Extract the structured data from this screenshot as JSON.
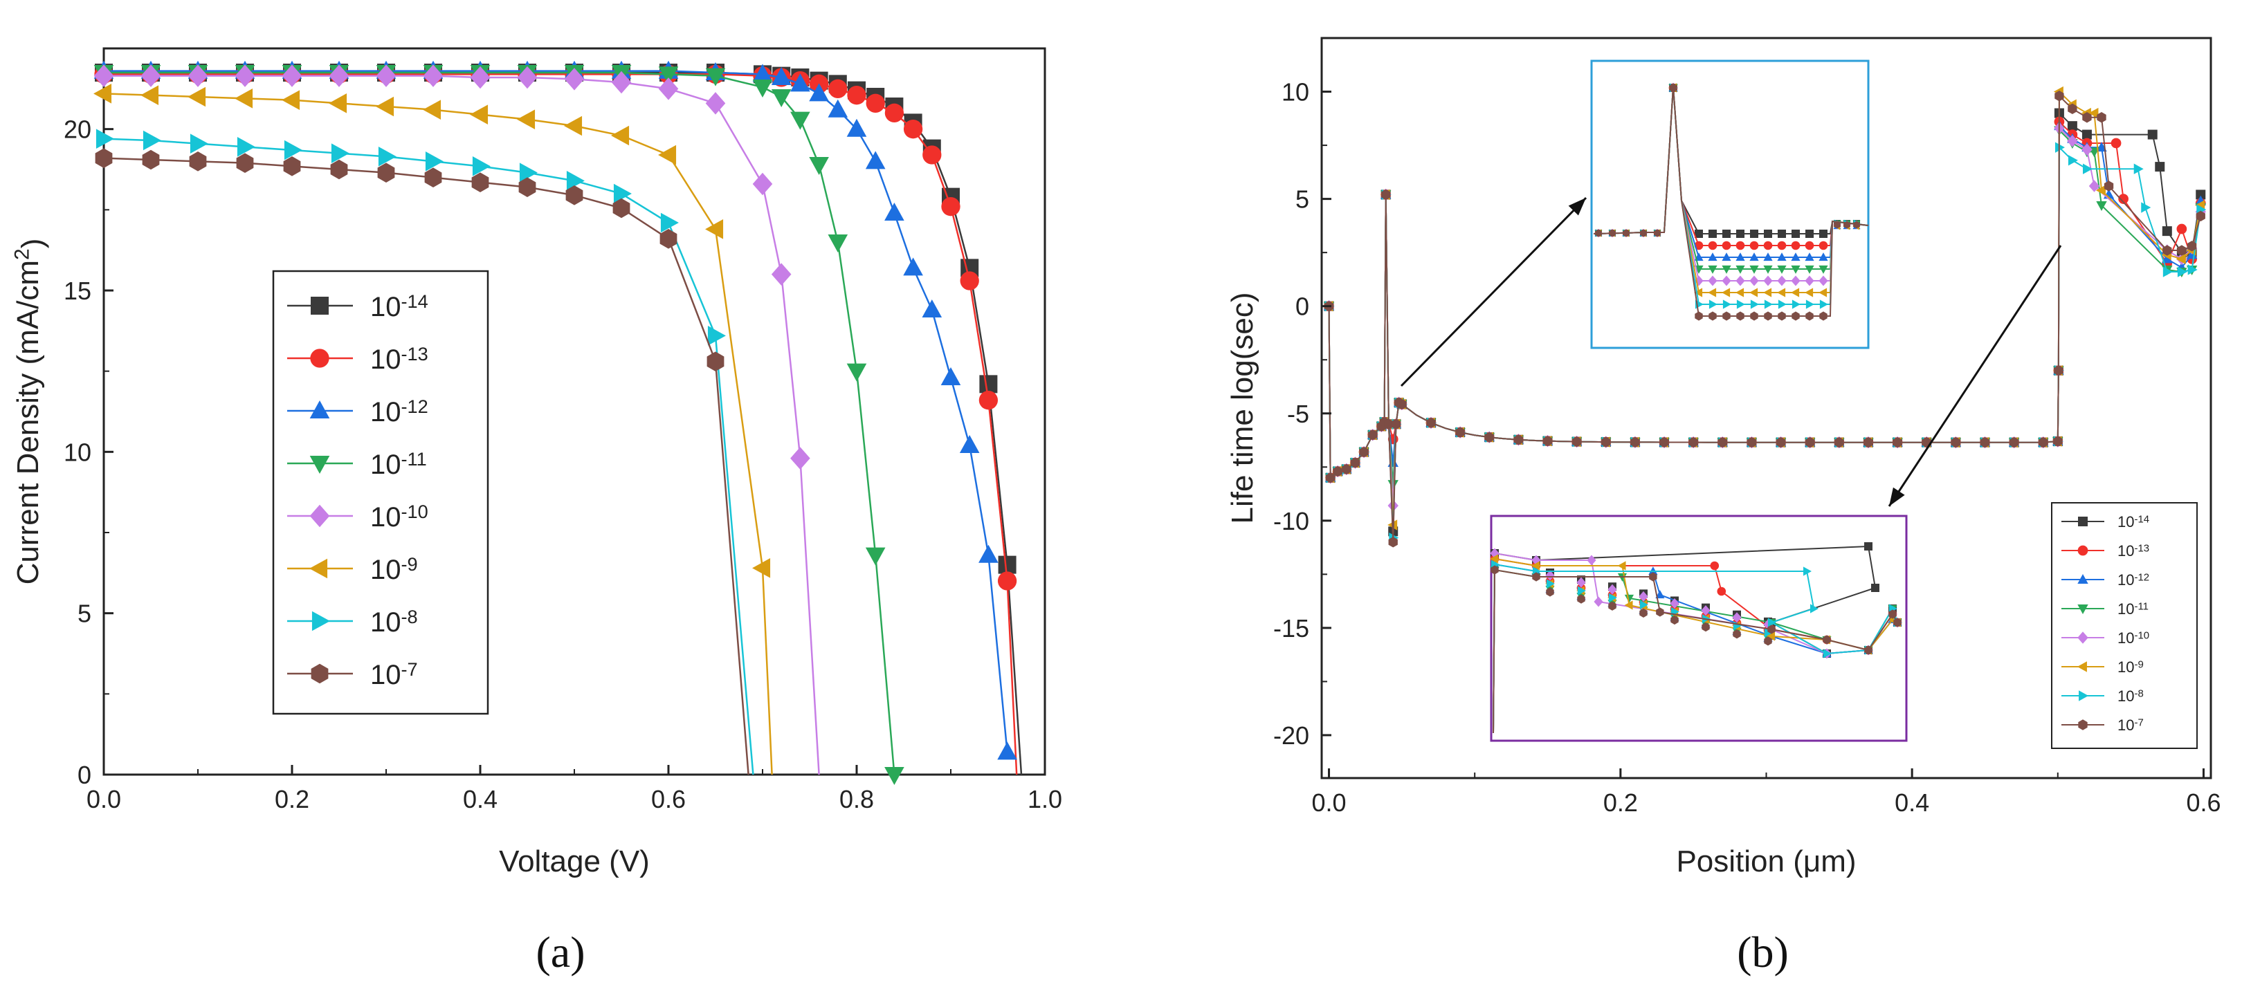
{
  "chart_data": [
    {
      "type": "line",
      "panel_label": "(a)",
      "xlabel": "Voltage (V)",
      "ylabel": "Current Density (mA/cm2)",
      "ylabel_unit_exponent": "2",
      "xlim": [
        0,
        1.0
      ],
      "ylim": [
        0,
        22.5
      ],
      "xticks": [
        "0.0",
        "0.2",
        "0.4",
        "0.6",
        "0.8",
        "1.0"
      ],
      "yticks": [
        "0",
        "5",
        "10",
        "15",
        "20"
      ],
      "xtick_values": [
        0,
        0.2,
        0.4,
        0.6,
        0.8,
        1.0
      ],
      "ytick_values": [
        0,
        5,
        10,
        15,
        20
      ],
      "legend_position": "center-left",
      "series": [
        {
          "name": "10-14",
          "base": "10",
          "exp": "-14",
          "color": "#3a3a3a",
          "marker": "square",
          "x": [
            0,
            0.05,
            0.1,
            0.15,
            0.2,
            0.25,
            0.3,
            0.35,
            0.4,
            0.45,
            0.5,
            0.55,
            0.6,
            0.65,
            0.7,
            0.72,
            0.74,
            0.76,
            0.78,
            0.8,
            0.82,
            0.84,
            0.86,
            0.88,
            0.9,
            0.92,
            0.94,
            0.96,
            0.975
          ],
          "y": [
            21.75,
            21.75,
            21.75,
            21.75,
            21.75,
            21.75,
            21.75,
            21.75,
            21.75,
            21.75,
            21.75,
            21.75,
            21.75,
            21.75,
            21.7,
            21.65,
            21.6,
            21.5,
            21.4,
            21.2,
            21.0,
            20.7,
            20.2,
            19.4,
            17.9,
            15.7,
            12.1,
            6.5,
            0
          ]
        },
        {
          "name": "10-13",
          "base": "10",
          "exp": "-13",
          "color": "#f0302a",
          "marker": "circle",
          "x": [
            0,
            0.05,
            0.1,
            0.15,
            0.2,
            0.25,
            0.3,
            0.35,
            0.4,
            0.45,
            0.5,
            0.55,
            0.6,
            0.65,
            0.7,
            0.72,
            0.74,
            0.76,
            0.78,
            0.8,
            0.82,
            0.84,
            0.86,
            0.88,
            0.9,
            0.92,
            0.94,
            0.96,
            0.97
          ],
          "y": [
            21.7,
            21.7,
            21.7,
            21.7,
            21.7,
            21.7,
            21.7,
            21.7,
            21.7,
            21.7,
            21.7,
            21.7,
            21.7,
            21.7,
            21.65,
            21.6,
            21.5,
            21.4,
            21.25,
            21.05,
            20.8,
            20.5,
            20.0,
            19.2,
            17.6,
            15.3,
            11.6,
            6.0,
            0
          ]
        },
        {
          "name": "10-12",
          "base": "10",
          "exp": "-12",
          "color": "#1d6fe0",
          "marker": "triangle-up",
          "x": [
            0,
            0.05,
            0.1,
            0.15,
            0.2,
            0.25,
            0.3,
            0.35,
            0.4,
            0.45,
            0.5,
            0.55,
            0.6,
            0.65,
            0.7,
            0.72,
            0.74,
            0.76,
            0.78,
            0.8,
            0.82,
            0.84,
            0.86,
            0.88,
            0.9,
            0.92,
            0.94,
            0.96
          ],
          "y": [
            21.8,
            21.8,
            21.8,
            21.8,
            21.8,
            21.8,
            21.8,
            21.8,
            21.8,
            21.8,
            21.8,
            21.8,
            21.8,
            21.75,
            21.7,
            21.6,
            21.4,
            21.1,
            20.6,
            20.0,
            19.0,
            17.4,
            15.7,
            14.4,
            12.3,
            10.2,
            6.8,
            0.7
          ]
        },
        {
          "name": "10-11",
          "base": "10",
          "exp": "-11",
          "color": "#2aa857",
          "marker": "triangle-down",
          "x": [
            0,
            0.05,
            0.1,
            0.15,
            0.2,
            0.25,
            0.3,
            0.35,
            0.4,
            0.45,
            0.5,
            0.55,
            0.6,
            0.65,
            0.7,
            0.72,
            0.74,
            0.76,
            0.78,
            0.8,
            0.82,
            0.84
          ],
          "y": [
            21.75,
            21.75,
            21.75,
            21.75,
            21.75,
            21.75,
            21.75,
            21.75,
            21.75,
            21.75,
            21.75,
            21.75,
            21.7,
            21.65,
            21.3,
            21.0,
            20.3,
            18.9,
            16.5,
            12.5,
            6.8,
            0
          ]
        },
        {
          "name": "10-10",
          "base": "10",
          "exp": "-10",
          "color": "#c77ee6",
          "marker": "diamond",
          "x": [
            0,
            0.05,
            0.1,
            0.15,
            0.2,
            0.25,
            0.3,
            0.35,
            0.4,
            0.45,
            0.5,
            0.55,
            0.6,
            0.65,
            0.7,
            0.72,
            0.74,
            0.76
          ],
          "y": [
            21.65,
            21.65,
            21.65,
            21.65,
            21.65,
            21.65,
            21.65,
            21.65,
            21.6,
            21.6,
            21.55,
            21.45,
            21.25,
            20.8,
            18.3,
            15.5,
            9.8,
            0
          ]
        },
        {
          "name": "10-9",
          "base": "10",
          "exp": "-9",
          "color": "#d99d12",
          "marker": "triangle-left",
          "x": [
            0,
            0.05,
            0.1,
            0.15,
            0.2,
            0.25,
            0.3,
            0.35,
            0.4,
            0.45,
            0.5,
            0.55,
            0.6,
            0.65,
            0.7,
            0.71
          ],
          "y": [
            21.1,
            21.05,
            21.0,
            20.95,
            20.9,
            20.8,
            20.7,
            20.6,
            20.45,
            20.3,
            20.1,
            19.8,
            19.2,
            16.9,
            6.4,
            0
          ]
        },
        {
          "name": "10-8",
          "base": "10",
          "exp": "-8",
          "color": "#17c4d6",
          "marker": "triangle-right",
          "x": [
            0,
            0.05,
            0.1,
            0.15,
            0.2,
            0.25,
            0.3,
            0.35,
            0.4,
            0.45,
            0.5,
            0.55,
            0.6,
            0.65,
            0.69
          ],
          "y": [
            19.7,
            19.65,
            19.55,
            19.45,
            19.35,
            19.25,
            19.15,
            19.0,
            18.85,
            18.65,
            18.4,
            18.0,
            17.1,
            13.6,
            0
          ]
        },
        {
          "name": "10-7",
          "base": "10",
          "exp": "-7",
          "color": "#7d4d45",
          "marker": "hexagon",
          "x": [
            0,
            0.05,
            0.1,
            0.15,
            0.2,
            0.25,
            0.3,
            0.35,
            0.4,
            0.45,
            0.5,
            0.55,
            0.6,
            0.65,
            0.685
          ],
          "y": [
            19.1,
            19.05,
            19.0,
            18.95,
            18.85,
            18.75,
            18.65,
            18.5,
            18.35,
            18.2,
            17.95,
            17.55,
            16.6,
            12.8,
            0
          ]
        }
      ]
    },
    {
      "type": "line",
      "panel_label": "(b)",
      "xlabel": "Position (μm)",
      "ylabel": "Life time log(sec)",
      "xlim": [
        -0.005,
        0.605
      ],
      "ylim": [
        -22,
        12.5
      ],
      "xticks": [
        "0.0",
        "0.2",
        "0.4",
        "0.6"
      ],
      "yticks": [
        "10",
        "5",
        "0",
        "-5",
        "-10",
        "-15",
        "-20"
      ],
      "xtick_values": [
        0,
        0.2,
        0.4,
        0.6
      ],
      "ytick_values": [
        10,
        5,
        0,
        -5,
        -10,
        -15,
        -20
      ],
      "legend_position": "bottom-right",
      "insets": [
        "zoom near x≈0.045 (region 1)",
        "zoom near x≈0.5–0.6 (region 2)"
      ],
      "series": [
        {
          "name": "10-14",
          "base": "10",
          "exp": "-14",
          "color": "#3a3a3a",
          "marker": "square",
          "drop": -10.5,
          "plateau": 8.0,
          "pend": 0.565,
          "tail": [
            3.5,
            2.5,
            2.5,
            5.2
          ]
        },
        {
          "name": "10-13",
          "base": "10",
          "exp": "-13",
          "color": "#f0302a",
          "marker": "circle",
          "drop": -6.2,
          "plateau": 7.6,
          "pend": 0.54,
          "tail": [
            2.0,
            3.6,
            2.2,
            4.8
          ]
        },
        {
          "name": "10-12",
          "base": "10",
          "exp": "-12",
          "color": "#1d6fe0",
          "marker": "triangle-up",
          "drop": -7.3,
          "plateau": 7.4,
          "pend": 0.53,
          "tail": [
            2.2,
            1.8,
            2.4,
            4.9
          ]
        },
        {
          "name": "10-11",
          "base": "10",
          "exp": "-11",
          "color": "#2aa857",
          "marker": "triangle-down",
          "drop": -8.3,
          "plateau": 7.2,
          "pend": 0.525,
          "tail": [
            1.7,
            1.6,
            1.7,
            4.6
          ]
        },
        {
          "name": "10-10",
          "base": "10",
          "exp": "-10",
          "color": "#c77ee6",
          "marker": "diamond",
          "drop": -9.3,
          "plateau": 7.3,
          "pend": 0.52,
          "tail": [
            2.6,
            2.2,
            2.7,
            4.4
          ]
        },
        {
          "name": "10-9",
          "base": "10",
          "exp": "-9",
          "color": "#d99d12",
          "marker": "triangle-left",
          "drop": -10.2,
          "plateau": 9.0,
          "pend": 0.525,
          "tail": [
            2.4,
            2.2,
            2.6,
            4.7
          ]
        },
        {
          "name": "10-8",
          "base": "10",
          "exp": "-8",
          "color": "#17c4d6",
          "marker": "triangle-right",
          "drop": -10.8,
          "plateau": 6.4,
          "pend": 0.555,
          "tail": [
            1.6,
            1.6,
            1.7,
            4.5
          ]
        },
        {
          "name": "10-7",
          "base": "10",
          "exp": "-7",
          "color": "#7d4d45",
          "marker": "hexagon",
          "drop": -11.0,
          "plateau": 8.8,
          "pend": 0.53,
          "tail": [
            2.6,
            2.6,
            2.8,
            4.2
          ]
        }
      ]
    }
  ]
}
